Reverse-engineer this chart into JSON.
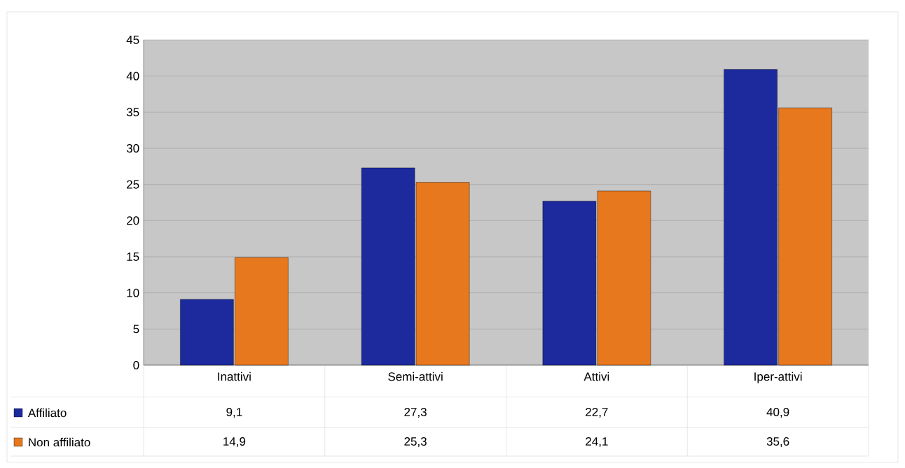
{
  "chart_data": {
    "type": "bar",
    "categories": [
      "Inattivi",
      "Semi-attivi",
      "Attivi",
      "Iper-attivi"
    ],
    "series": [
      {
        "name": "Affiliato",
        "color": "#1c2a9e",
        "values": [
          9.1,
          27.3,
          22.7,
          40.9
        ],
        "value_labels": [
          "9,1",
          "27,3",
          "22,7",
          "40,9"
        ]
      },
      {
        "name": "Non affiliato",
        "color": "#e8781e",
        "values": [
          14.9,
          25.3,
          24.1,
          35.6
        ],
        "value_labels": [
          "14,9",
          "25,3",
          "24,1",
          "35,6"
        ]
      }
    ],
    "ylim": [
      0,
      45
    ],
    "yticks": [
      0,
      5,
      10,
      15,
      20,
      25,
      30,
      35,
      40,
      45
    ],
    "grid": "y",
    "legend": "bottom"
  }
}
